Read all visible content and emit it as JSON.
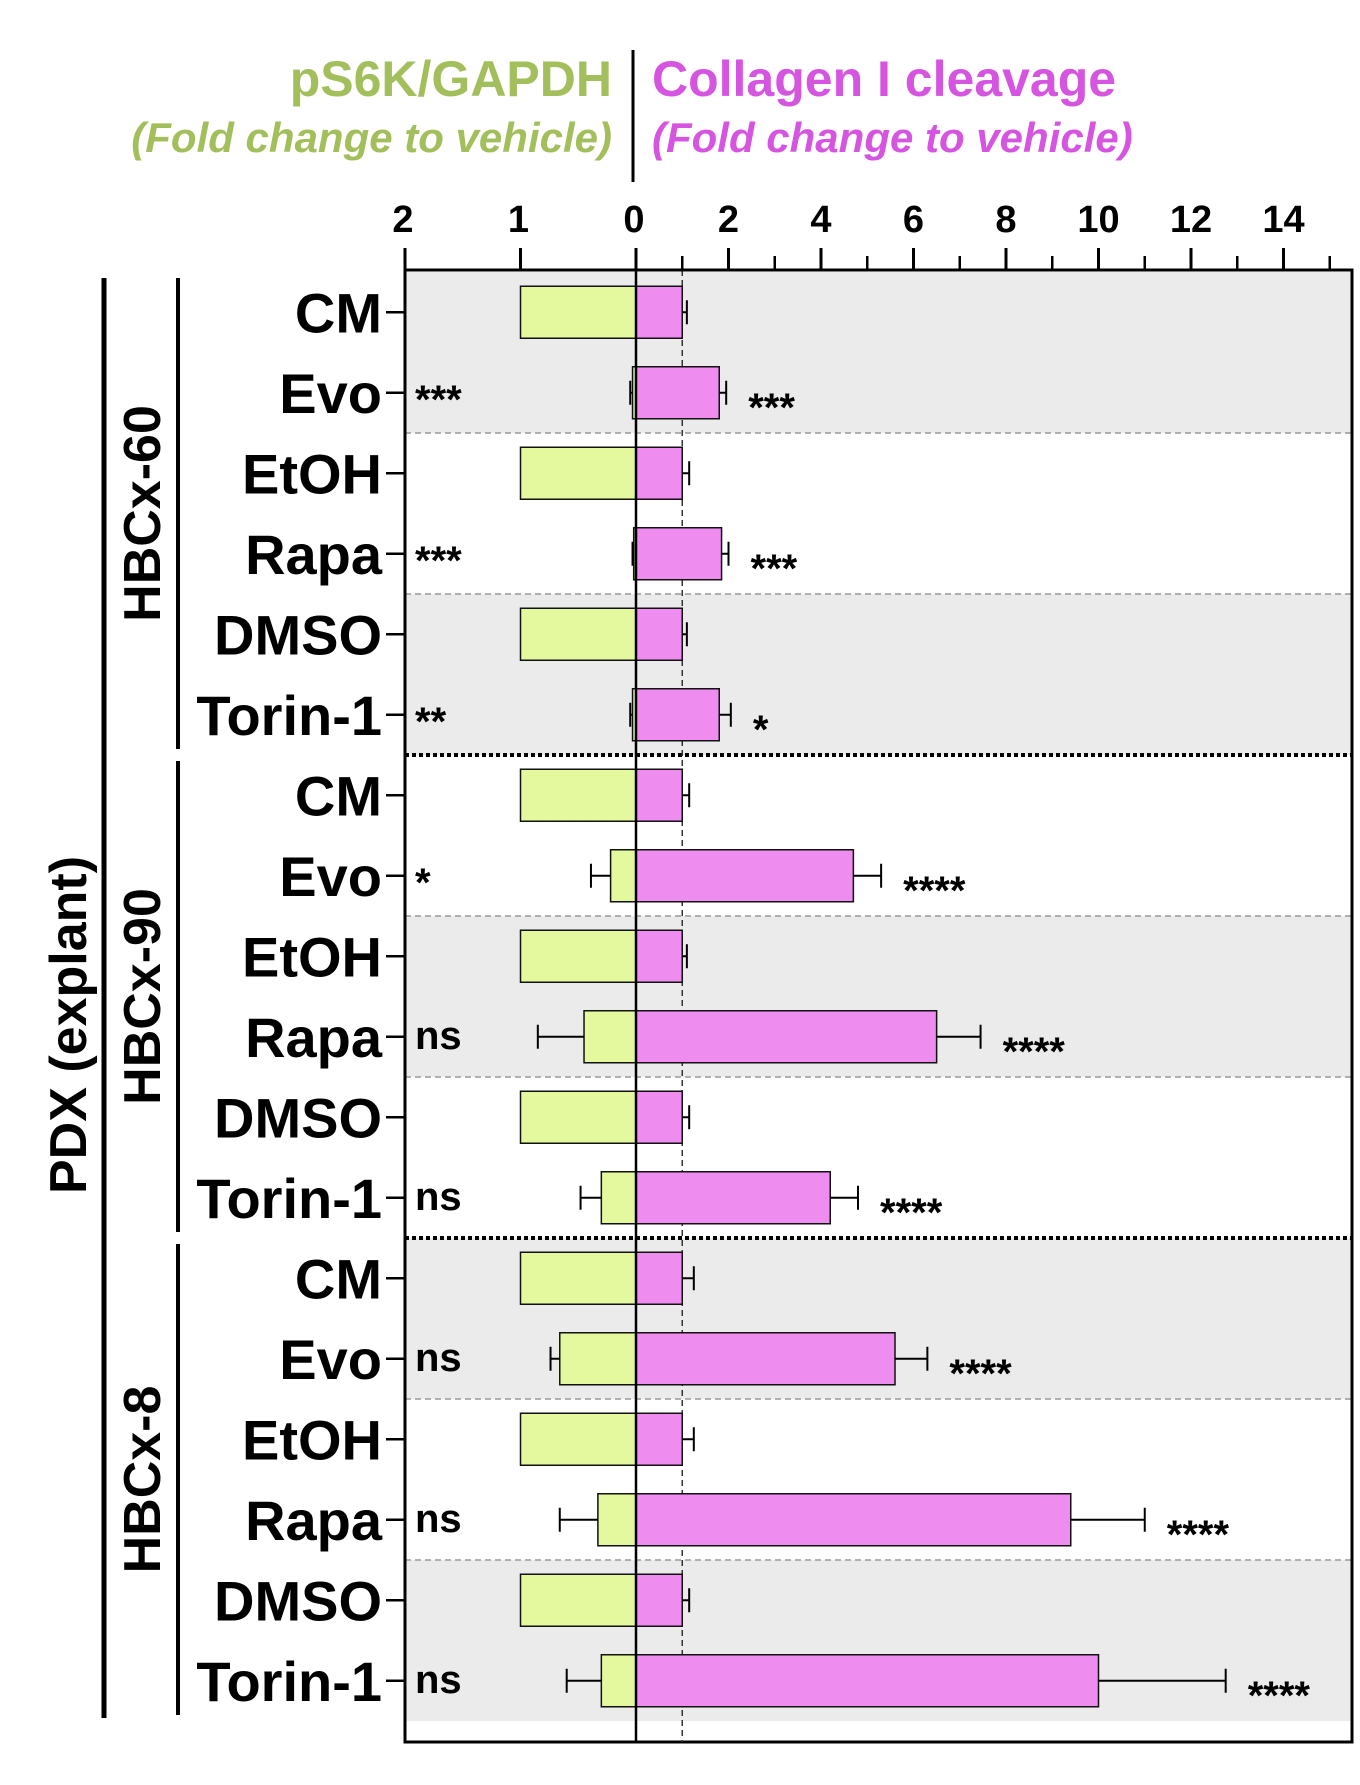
{
  "header": {
    "left_title": "pS6K/GAPDH",
    "left_subtitle": "(Fold change to vehicle)",
    "right_title": "Collagen I cleavage",
    "right_subtitle": "(Fold change to vehicle)"
  },
  "colors": {
    "green_text": "#a3bf5c",
    "magenta_text": "#d655e0",
    "green_bar": "#e4f99e",
    "pink_bar": "#ee8cf0",
    "shade": "#ebebeb"
  },
  "outer_label": "PDX (explant)",
  "chart_data": {
    "type": "bar",
    "orientation": "horizontal",
    "left_axis": {
      "ticks": [
        "2",
        "1",
        "0"
      ],
      "range": [
        2,
        0
      ]
    },
    "right_axis": {
      "ticks": [
        "0",
        "2",
        "4",
        "6",
        "8",
        "10",
        "12",
        "14"
      ],
      "range": [
        0,
        15
      ],
      "reference_line": 1
    },
    "grid": false,
    "groups": [
      {
        "name": "HBCx-60",
        "rows": [
          {
            "label": "CM",
            "pS6K": 1.0,
            "pS6K_err": 0.0,
            "pS6K_sig": "",
            "collagen": 1.0,
            "collagen_err": 0.1,
            "collagen_sig": ""
          },
          {
            "label": "Evo",
            "pS6K": 0.03,
            "pS6K_err": 0.02,
            "pS6K_sig": "***",
            "collagen": 1.8,
            "collagen_err": 0.15,
            "collagen_sig": "***"
          },
          {
            "label": "EtOH",
            "pS6K": 1.0,
            "pS6K_err": 0.0,
            "pS6K_sig": "",
            "collagen": 1.0,
            "collagen_err": 0.15,
            "collagen_sig": ""
          },
          {
            "label": "Rapa",
            "pS6K": 0.02,
            "pS6K_err": 0.01,
            "pS6K_sig": "***",
            "collagen": 1.85,
            "collagen_err": 0.15,
            "collagen_sig": "***"
          },
          {
            "label": "DMSO",
            "pS6K": 1.0,
            "pS6K_err": 0.0,
            "pS6K_sig": "",
            "collagen": 1.0,
            "collagen_err": 0.1,
            "collagen_sig": ""
          },
          {
            "label": "Torin-1",
            "pS6K": 0.03,
            "pS6K_err": 0.02,
            "pS6K_sig": "**",
            "collagen": 1.8,
            "collagen_err": 0.25,
            "collagen_sig": "*"
          }
        ]
      },
      {
        "name": "HBCx-90",
        "rows": [
          {
            "label": "CM",
            "pS6K": 1.0,
            "pS6K_err": 0.0,
            "pS6K_sig": "",
            "collagen": 1.0,
            "collagen_err": 0.15,
            "collagen_sig": ""
          },
          {
            "label": "Evo",
            "pS6K": 0.22,
            "pS6K_err": 0.17,
            "pS6K_sig": "*",
            "collagen": 4.7,
            "collagen_err": 0.6,
            "collagen_sig": "****"
          },
          {
            "label": "EtOH",
            "pS6K": 1.0,
            "pS6K_err": 0.0,
            "pS6K_sig": "",
            "collagen": 1.0,
            "collagen_err": 0.1,
            "collagen_sig": ""
          },
          {
            "label": "Rapa",
            "pS6K": 0.45,
            "pS6K_err": 0.4,
            "pS6K_sig": "ns",
            "collagen": 6.5,
            "collagen_err": 0.95,
            "collagen_sig": "****"
          },
          {
            "label": "DMSO",
            "pS6K": 1.0,
            "pS6K_err": 0.0,
            "pS6K_sig": "",
            "collagen": 1.0,
            "collagen_err": 0.15,
            "collagen_sig": ""
          },
          {
            "label": "Torin-1",
            "pS6K": 0.3,
            "pS6K_err": 0.18,
            "pS6K_sig": "ns",
            "collagen": 4.2,
            "collagen_err": 0.6,
            "collagen_sig": "****"
          }
        ]
      },
      {
        "name": "HBCx-8",
        "rows": [
          {
            "label": "CM",
            "pS6K": 1.0,
            "pS6K_err": 0.0,
            "pS6K_sig": "",
            "collagen": 1.0,
            "collagen_err": 0.25,
            "collagen_sig": ""
          },
          {
            "label": "Evo",
            "pS6K": 0.66,
            "pS6K_err": 0.08,
            "pS6K_sig": "ns",
            "collagen": 5.6,
            "collagen_err": 0.7,
            "collagen_sig": "****"
          },
          {
            "label": "EtOH",
            "pS6K": 1.0,
            "pS6K_err": 0.0,
            "pS6K_sig": "",
            "collagen": 1.0,
            "collagen_err": 0.25,
            "collagen_sig": ""
          },
          {
            "label": "Rapa",
            "pS6K": 0.33,
            "pS6K_err": 0.33,
            "pS6K_sig": "ns",
            "collagen": 9.4,
            "collagen_err": 1.6,
            "collagen_sig": "****"
          },
          {
            "label": "DMSO",
            "pS6K": 1.0,
            "pS6K_err": 0.0,
            "pS6K_sig": "",
            "collagen": 1.0,
            "collagen_err": 0.15,
            "collagen_sig": ""
          },
          {
            "label": "Torin-1",
            "pS6K": 0.3,
            "pS6K_err": 0.3,
            "pS6K_sig": "ns",
            "collagen": 10.0,
            "collagen_err": 2.75,
            "collagen_sig": "****"
          }
        ]
      }
    ]
  }
}
